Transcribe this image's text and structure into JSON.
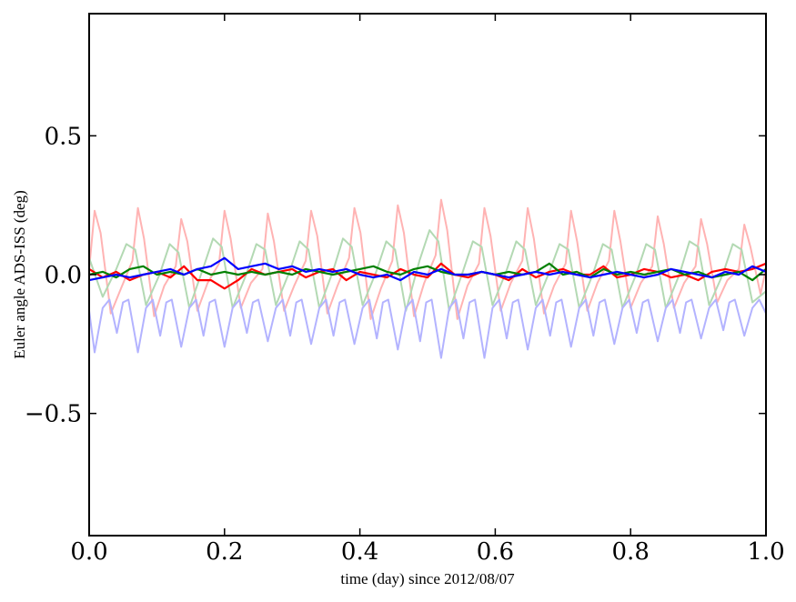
{
  "chart_data": {
    "type": "line",
    "title": "",
    "xlabel": "time (day) since 2012/08/07",
    "ylabel": "Euler angle ADS-ISS (deg)",
    "xlim": [
      0.0,
      1.0
    ],
    "ylim": [
      -0.94,
      0.94
    ],
    "x_ticks": [
      0.0,
      0.2,
      0.4,
      0.6,
      0.8,
      1.0
    ],
    "x_tick_labels": [
      "0.0",
      "0.2",
      "0.4",
      "0.6",
      "0.8",
      "1.0"
    ],
    "y_ticks": [
      -0.5,
      0.0,
      0.5
    ],
    "y_tick_labels": [
      "−0.5",
      "0.0",
      "0.5"
    ],
    "grid": false,
    "legend": "none",
    "series": [
      {
        "color": "#ffb3b3",
        "style": "faded",
        "x": [
          0.0,
          0.008,
          0.017,
          0.032,
          0.047,
          0.064,
          0.072,
          0.081,
          0.096,
          0.111,
          0.128,
          0.136,
          0.145,
          0.16,
          0.175,
          0.192,
          0.2,
          0.209,
          0.224,
          0.239,
          0.256,
          0.264,
          0.273,
          0.288,
          0.303,
          0.32,
          0.328,
          0.337,
          0.352,
          0.367,
          0.384,
          0.392,
          0.401,
          0.416,
          0.431,
          0.448,
          0.456,
          0.465,
          0.48,
          0.495,
          0.512,
          0.52,
          0.529,
          0.544,
          0.559,
          0.576,
          0.584,
          0.593,
          0.608,
          0.623,
          0.64,
          0.648,
          0.657,
          0.672,
          0.687,
          0.704,
          0.712,
          0.721,
          0.736,
          0.751,
          0.768,
          0.776,
          0.785,
          0.8,
          0.815,
          0.832,
          0.84,
          0.849,
          0.864,
          0.879,
          0.896,
          0.904,
          0.913,
          0.928,
          0.943,
          0.96,
          0.968,
          0.977,
          0.992,
          1.0
        ],
        "y": [
          0.02,
          0.23,
          0.15,
          -0.14,
          -0.05,
          0.05,
          0.24,
          0.13,
          -0.15,
          -0.04,
          0.03,
          0.2,
          0.12,
          -0.13,
          -0.03,
          0.04,
          0.23,
          0.13,
          -0.12,
          -0.03,
          0.02,
          0.22,
          0.12,
          -0.13,
          -0.04,
          0.05,
          0.23,
          0.14,
          -0.14,
          -0.04,
          0.06,
          0.24,
          0.15,
          -0.16,
          -0.05,
          0.05,
          0.25,
          0.15,
          -0.15,
          -0.03,
          0.07,
          0.27,
          0.16,
          -0.16,
          -0.04,
          0.04,
          0.24,
          0.14,
          -0.13,
          -0.03,
          0.05,
          0.24,
          0.13,
          -0.14,
          -0.04,
          0.04,
          0.23,
          0.12,
          -0.13,
          -0.03,
          0.05,
          0.23,
          0.12,
          -0.12,
          -0.03,
          0.03,
          0.21,
          0.11,
          -0.12,
          -0.03,
          0.03,
          0.2,
          0.11,
          -0.1,
          -0.02,
          0.02,
          0.18,
          0.1,
          -0.07,
          0.02
        ]
      },
      {
        "color": "#b3d9b3",
        "style": "faded",
        "x": [
          0.0,
          0.02,
          0.04,
          0.055,
          0.068,
          0.084,
          0.104,
          0.119,
          0.132,
          0.148,
          0.168,
          0.183,
          0.196,
          0.212,
          0.232,
          0.247,
          0.26,
          0.276,
          0.296,
          0.311,
          0.324,
          0.34,
          0.36,
          0.375,
          0.388,
          0.404,
          0.424,
          0.439,
          0.452,
          0.468,
          0.488,
          0.503,
          0.516,
          0.532,
          0.552,
          0.567,
          0.58,
          0.596,
          0.616,
          0.631,
          0.644,
          0.66,
          0.68,
          0.695,
          0.708,
          0.724,
          0.744,
          0.759,
          0.772,
          0.788,
          0.808,
          0.823,
          0.836,
          0.852,
          0.872,
          0.887,
          0.9,
          0.916,
          0.936,
          0.951,
          0.964,
          0.98,
          1.0
        ],
        "y": [
          0.06,
          -0.08,
          0.02,
          0.11,
          0.09,
          -0.11,
          0.0,
          0.11,
          0.08,
          -0.12,
          0.02,
          0.13,
          0.1,
          -0.12,
          0.0,
          0.11,
          0.09,
          -0.11,
          0.01,
          0.12,
          0.09,
          -0.12,
          0.01,
          0.13,
          0.1,
          -0.11,
          0.01,
          0.12,
          0.09,
          -0.13,
          0.05,
          0.16,
          0.12,
          -0.13,
          0.01,
          0.12,
          0.1,
          -0.11,
          0.01,
          0.12,
          0.09,
          -0.11,
          0.01,
          0.11,
          0.09,
          -0.12,
          0.0,
          0.11,
          0.09,
          -0.12,
          0.0,
          0.11,
          0.09,
          -0.12,
          0.0,
          0.12,
          0.1,
          -0.11,
          0.0,
          0.11,
          0.09,
          -0.1,
          -0.06
        ]
      },
      {
        "color": "#b3b3ff",
        "style": "faded",
        "x": [
          0.0,
          0.008,
          0.02,
          0.03,
          0.041,
          0.05,
          0.058,
          0.072,
          0.084,
          0.094,
          0.105,
          0.114,
          0.122,
          0.136,
          0.148,
          0.158,
          0.169,
          0.178,
          0.186,
          0.2,
          0.212,
          0.222,
          0.233,
          0.242,
          0.25,
          0.264,
          0.276,
          0.286,
          0.297,
          0.306,
          0.314,
          0.328,
          0.34,
          0.35,
          0.361,
          0.37,
          0.378,
          0.392,
          0.404,
          0.414,
          0.425,
          0.434,
          0.442,
          0.456,
          0.468,
          0.478,
          0.489,
          0.498,
          0.506,
          0.52,
          0.532,
          0.542,
          0.553,
          0.562,
          0.57,
          0.584,
          0.596,
          0.606,
          0.617,
          0.626,
          0.634,
          0.648,
          0.66,
          0.67,
          0.681,
          0.69,
          0.698,
          0.712,
          0.724,
          0.734,
          0.745,
          0.754,
          0.762,
          0.776,
          0.788,
          0.798,
          0.809,
          0.818,
          0.826,
          0.84,
          0.852,
          0.862,
          0.873,
          0.882,
          0.89,
          0.904,
          0.916,
          0.926,
          0.937,
          0.946,
          0.954,
          0.968,
          0.98,
          0.99,
          1.0
        ],
        "y": [
          -0.13,
          -0.28,
          -0.12,
          -0.09,
          -0.21,
          -0.1,
          -0.09,
          -0.28,
          -0.12,
          -0.09,
          -0.22,
          -0.1,
          -0.09,
          -0.26,
          -0.12,
          -0.09,
          -0.22,
          -0.1,
          -0.09,
          -0.26,
          -0.12,
          -0.09,
          -0.21,
          -0.1,
          -0.09,
          -0.24,
          -0.12,
          -0.09,
          -0.22,
          -0.1,
          -0.09,
          -0.25,
          -0.12,
          -0.09,
          -0.22,
          -0.1,
          -0.09,
          -0.25,
          -0.12,
          -0.09,
          -0.23,
          -0.1,
          -0.09,
          -0.27,
          -0.12,
          -0.09,
          -0.24,
          -0.1,
          -0.09,
          -0.3,
          -0.12,
          -0.09,
          -0.23,
          -0.1,
          -0.09,
          -0.3,
          -0.12,
          -0.09,
          -0.23,
          -0.1,
          -0.09,
          -0.27,
          -0.12,
          -0.09,
          -0.22,
          -0.1,
          -0.09,
          -0.26,
          -0.12,
          -0.09,
          -0.22,
          -0.1,
          -0.09,
          -0.25,
          -0.12,
          -0.09,
          -0.21,
          -0.1,
          -0.09,
          -0.24,
          -0.12,
          -0.09,
          -0.21,
          -0.1,
          -0.09,
          -0.23,
          -0.12,
          -0.09,
          -0.2,
          -0.1,
          -0.09,
          -0.22,
          -0.12,
          -0.09,
          -0.14
        ]
      },
      {
        "color": "#ff0000",
        "style": "solid",
        "x": [
          0.0,
          0.02,
          0.04,
          0.06,
          0.08,
          0.1,
          0.12,
          0.14,
          0.16,
          0.18,
          0.2,
          0.22,
          0.24,
          0.26,
          0.28,
          0.3,
          0.32,
          0.34,
          0.36,
          0.38,
          0.4,
          0.42,
          0.44,
          0.46,
          0.48,
          0.5,
          0.52,
          0.54,
          0.56,
          0.58,
          0.6,
          0.62,
          0.64,
          0.66,
          0.68,
          0.7,
          0.72,
          0.74,
          0.76,
          0.78,
          0.8,
          0.82,
          0.84,
          0.86,
          0.88,
          0.9,
          0.92,
          0.94,
          0.96,
          0.98,
          1.0
        ],
        "y": [
          0.02,
          -0.01,
          0.01,
          -0.02,
          0.0,
          0.01,
          -0.01,
          0.03,
          -0.02,
          -0.02,
          -0.05,
          -0.02,
          0.02,
          0.0,
          0.01,
          0.02,
          -0.01,
          0.01,
          0.02,
          -0.02,
          0.01,
          0.0,
          -0.01,
          0.02,
          0.0,
          -0.01,
          0.04,
          0.0,
          -0.01,
          0.01,
          0.0,
          -0.02,
          0.02,
          -0.01,
          0.01,
          0.02,
          0.0,
          0.0,
          0.03,
          -0.01,
          0.0,
          0.02,
          0.01,
          -0.01,
          0.0,
          -0.02,
          0.01,
          0.02,
          0.01,
          0.02,
          0.04
        ]
      },
      {
        "color": "#008000",
        "style": "solid",
        "x": [
          0.0,
          0.02,
          0.04,
          0.06,
          0.08,
          0.1,
          0.12,
          0.14,
          0.16,
          0.18,
          0.2,
          0.22,
          0.24,
          0.26,
          0.28,
          0.3,
          0.32,
          0.34,
          0.36,
          0.38,
          0.4,
          0.42,
          0.44,
          0.46,
          0.48,
          0.5,
          0.52,
          0.54,
          0.56,
          0.58,
          0.6,
          0.62,
          0.64,
          0.66,
          0.68,
          0.7,
          0.72,
          0.74,
          0.76,
          0.78,
          0.8,
          0.82,
          0.84,
          0.86,
          0.88,
          0.9,
          0.92,
          0.94,
          0.96,
          0.98,
          1.0
        ],
        "y": [
          0.0,
          0.01,
          -0.01,
          0.02,
          0.03,
          0.0,
          0.01,
          0.0,
          0.02,
          0.0,
          0.01,
          0.0,
          0.01,
          0.0,
          0.01,
          0.0,
          0.02,
          0.01,
          0.0,
          0.01,
          0.02,
          0.03,
          0.01,
          0.0,
          0.02,
          0.03,
          0.01,
          0.0,
          0.0,
          0.01,
          0.0,
          0.01,
          0.0,
          0.01,
          0.04,
          0.0,
          0.01,
          -0.01,
          0.02,
          0.0,
          0.01,
          0.0,
          0.01,
          0.02,
          0.0,
          0.01,
          -0.01,
          0.0,
          0.01,
          -0.02,
          0.02
        ]
      },
      {
        "color": "#0000ff",
        "style": "solid",
        "x": [
          0.0,
          0.02,
          0.04,
          0.06,
          0.08,
          0.1,
          0.12,
          0.14,
          0.16,
          0.18,
          0.2,
          0.22,
          0.24,
          0.26,
          0.28,
          0.3,
          0.32,
          0.34,
          0.36,
          0.38,
          0.4,
          0.42,
          0.44,
          0.46,
          0.48,
          0.5,
          0.52,
          0.54,
          0.56,
          0.58,
          0.6,
          0.62,
          0.64,
          0.66,
          0.68,
          0.7,
          0.72,
          0.74,
          0.76,
          0.78,
          0.8,
          0.82,
          0.84,
          0.86,
          0.88,
          0.9,
          0.92,
          0.94,
          0.96,
          0.98,
          1.0
        ],
        "y": [
          -0.02,
          -0.01,
          0.0,
          -0.01,
          0.0,
          0.01,
          0.02,
          0.0,
          0.02,
          0.03,
          0.06,
          0.02,
          0.03,
          0.04,
          0.02,
          0.03,
          0.01,
          0.02,
          0.01,
          0.02,
          0.0,
          -0.01,
          0.0,
          -0.02,
          0.01,
          0.0,
          0.02,
          0.0,
          0.0,
          0.01,
          0.0,
          -0.01,
          0.0,
          0.01,
          0.0,
          0.01,
          0.0,
          -0.01,
          0.0,
          0.01,
          0.0,
          -0.01,
          0.0,
          0.02,
          0.01,
          0.0,
          -0.01,
          0.01,
          0.0,
          0.03,
          0.01
        ]
      }
    ]
  }
}
